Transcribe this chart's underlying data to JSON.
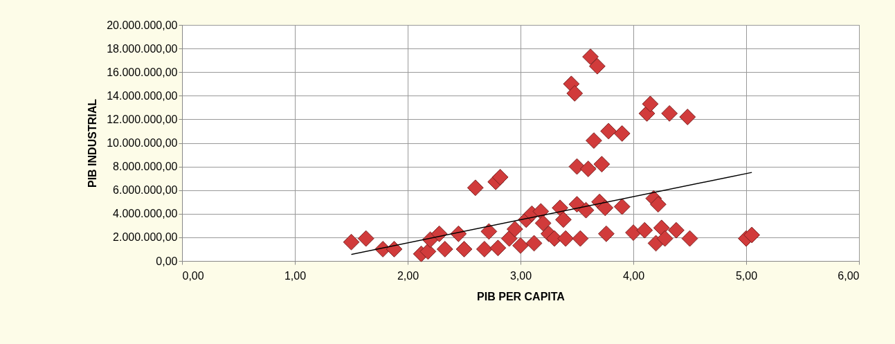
{
  "chart_data": {
    "type": "scatter",
    "xlabel": "PIB PER CAPITA",
    "ylabel": "PIB INDUSTRIAL",
    "xlim": [
      0,
      6
    ],
    "ylim": [
      0,
      20000000
    ],
    "xticks": [
      {
        "value": 0,
        "label": "0,00"
      },
      {
        "value": 1,
        "label": "1,00"
      },
      {
        "value": 2,
        "label": "2,00"
      },
      {
        "value": 3,
        "label": "3,00"
      },
      {
        "value": 4,
        "label": "4,00"
      },
      {
        "value": 5,
        "label": "5,00"
      },
      {
        "value": 6,
        "label": "6,00"
      }
    ],
    "yticks": [
      {
        "value": 0,
        "label": "0,00"
      },
      {
        "value": 2000000,
        "label": "2.000.000,00"
      },
      {
        "value": 4000000,
        "label": "4.000.000,00"
      },
      {
        "value": 6000000,
        "label": "6.000.000,00"
      },
      {
        "value": 8000000,
        "label": "8.000.000,00"
      },
      {
        "value": 10000000,
        "label": "10.000.000,00"
      },
      {
        "value": 12000000,
        "label": "12.000.000,00"
      },
      {
        "value": 14000000,
        "label": "14.000.000,00"
      },
      {
        "value": 16000000,
        "label": "16.000.000,00"
      },
      {
        "value": 18000000,
        "label": "18.000.000,00"
      },
      {
        "value": 20000000,
        "label": "20.000.000,00"
      }
    ],
    "grid": true,
    "series": [
      {
        "marker": "diamond",
        "color": "#d13b3b",
        "x": [
          1.5,
          1.63,
          1.78,
          1.88,
          2.12,
          2.18,
          2.2,
          2.28,
          2.33,
          2.45,
          2.5,
          2.6,
          2.68,
          2.72,
          2.78,
          2.82,
          2.8,
          2.9,
          2.95,
          3.0,
          3.05,
          3.1,
          3.12,
          3.18,
          3.2,
          3.25,
          3.3,
          3.35,
          3.38,
          3.4,
          3.45,
          3.48,
          3.5,
          3.5,
          3.53,
          3.58,
          3.6,
          3.62,
          3.65,
          3.68,
          3.7,
          3.72,
          3.75,
          3.76,
          3.78,
          3.9,
          3.9,
          4.0,
          4.1,
          4.12,
          4.15,
          4.18,
          4.2,
          4.22,
          4.25,
          4.28,
          4.32,
          4.38,
          4.48,
          4.5,
          5.0,
          5.05
        ],
        "values": [
          1600000,
          1900000,
          1000000,
          1000000,
          600000,
          800000,
          1800000,
          2300000,
          1000000,
          2300000,
          1000000,
          6200000,
          1000000,
          2500000,
          6700000,
          7100000,
          1100000,
          1900000,
          2700000,
          1300000,
          3500000,
          4000000,
          1500000,
          4200000,
          3200000,
          2300000,
          1900000,
          4500000,
          3500000,
          1900000,
          15000000,
          14200000,
          4800000,
          8000000,
          1900000,
          4300000,
          7800000,
          17300000,
          10200000,
          16500000,
          5000000,
          8200000,
          4500000,
          2300000,
          11000000,
          10800000,
          4600000,
          2400000,
          2600000,
          12500000,
          13300000,
          5300000,
          1500000,
          4800000,
          2800000,
          1900000,
          12500000,
          2600000,
          12200000,
          1900000,
          1900000,
          2200000
        ]
      },
      {
        "type": "line",
        "marker": "none",
        "line_style": "solid",
        "color": "#000000",
        "x": [
          1.5,
          5.05
        ],
        "values": [
          550000,
          7500000
        ]
      }
    ]
  }
}
